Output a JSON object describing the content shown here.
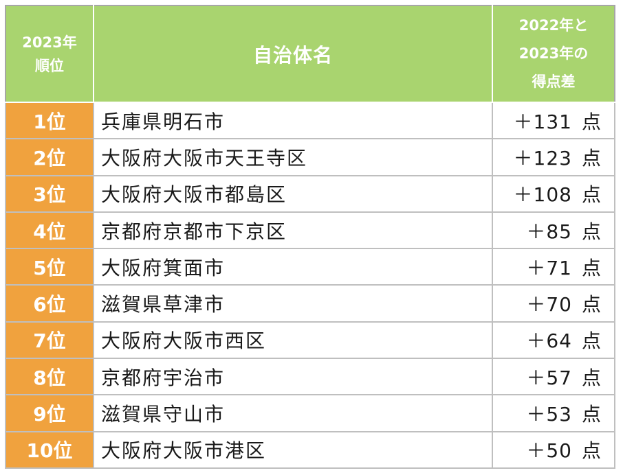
{
  "header": {
    "rank_line1": "2023年",
    "rank_line2": "順位",
    "name_label": "自治体名",
    "diff_line1": "2022年と",
    "diff_line2": "2023年の",
    "diff_line3": "得点差"
  },
  "rows": [
    {
      "rank": "1位",
      "name": "兵庫県明石市",
      "diff": "＋131",
      "unit": "点"
    },
    {
      "rank": "2位",
      "name": "大阪府大阪市天王寺区",
      "diff": "＋123",
      "unit": "点"
    },
    {
      "rank": "3位",
      "name": "大阪府大阪市都島区",
      "diff": "＋108",
      "unit": "点"
    },
    {
      "rank": "4位",
      "name": "京都府京都市下京区",
      "diff": "＋85",
      "unit": "点"
    },
    {
      "rank": "5位",
      "name": "大阪府箕面市",
      "diff": "＋71",
      "unit": "点"
    },
    {
      "rank": "6位",
      "name": "滋賀県草津市",
      "diff": "＋70",
      "unit": "点"
    },
    {
      "rank": "7位",
      "name": "大阪府大阪市西区",
      "diff": "＋64",
      "unit": "点"
    },
    {
      "rank": "8位",
      "name": "京都府宇治市",
      "diff": "＋57",
      "unit": "点"
    },
    {
      "rank": "9位",
      "name": "滋賀県守山市",
      "diff": "＋53",
      "unit": "点"
    },
    {
      "rank": "10位",
      "name": "大阪府大阪市港区",
      "diff": "＋50",
      "unit": "点"
    }
  ],
  "colors": {
    "header_green": "#a9d46f",
    "rank_orange": "#f0a23e",
    "border_gray": "#bfbfbf"
  }
}
